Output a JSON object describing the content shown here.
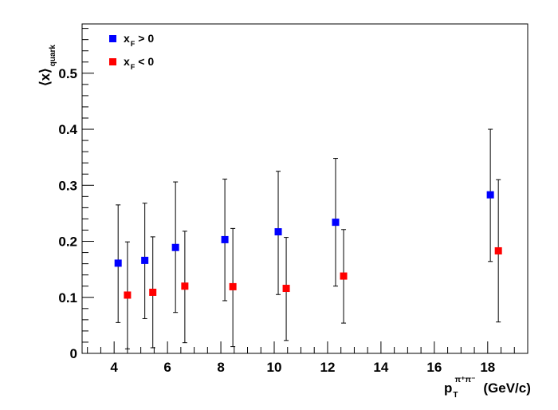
{
  "chart_data": {
    "type": "scatter",
    "title": "",
    "xlabel": {
      "main": "p",
      "subscript": "T",
      "superscript": "π⁺π⁻",
      "unit": "(GeV/c)"
    },
    "ylabel": {
      "main": "⟨x⟩",
      "subscript": "quark"
    },
    "xlim": [
      2.8,
      19.5
    ],
    "ylim": [
      0,
      0.588
    ],
    "x_ticks": [
      4,
      6,
      8,
      10,
      12,
      14,
      16,
      18
    ],
    "y_ticks": [
      0,
      0.1,
      0.2,
      0.3,
      0.4,
      0.5
    ],
    "x_tick_labels": [
      "4",
      "6",
      "8",
      "10",
      "12",
      "14",
      "16",
      "18"
    ],
    "y_tick_labels": [
      "0",
      "0.1",
      "0.2",
      "0.3",
      "0.4",
      "0.5"
    ],
    "grid": false,
    "legend_position": "top-left",
    "series": [
      {
        "label_main": "x",
        "label_sub": "F",
        "label_rest": "> 0",
        "color": "#0000ff",
        "x": [
          4.15,
          5.15,
          6.3,
          8.15,
          10.15,
          12.3,
          18.1
        ],
        "y": [
          0.161,
          0.166,
          0.189,
          0.203,
          0.217,
          0.234,
          0.283
        ],
        "err_low": [
          0.106,
          0.104,
          0.116,
          0.109,
          0.112,
          0.114,
          0.119
        ],
        "err_high": [
          0.104,
          0.102,
          0.117,
          0.108,
          0.108,
          0.114,
          0.117
        ]
      },
      {
        "label_main": "x",
        "label_sub": "F",
        "label_rest": "< 0",
        "color": "#ff0000",
        "x": [
          4.5,
          5.45,
          6.65,
          8.45,
          10.45,
          12.6,
          18.4
        ],
        "y": [
          0.104,
          0.109,
          0.12,
          0.119,
          0.116,
          0.138,
          0.183
        ],
        "err_low": [
          0.096,
          0.099,
          0.101,
          0.107,
          0.093,
          0.084,
          0.127
        ],
        "err_high": [
          0.095,
          0.099,
          0.098,
          0.104,
          0.091,
          0.083,
          0.127
        ]
      }
    ]
  }
}
